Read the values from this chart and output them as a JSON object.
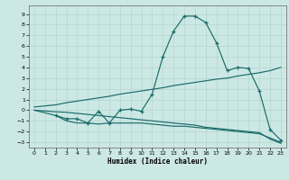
{
  "xlabel": "Humidex (Indice chaleur)",
  "bg_color": "#cce8e4",
  "grid_color": "#b8d8d4",
  "line_color": "#1a6b6b",
  "xlim": [
    -0.5,
    23.5
  ],
  "ylim": [
    -3.5,
    9.8
  ],
  "yticks": [
    -3,
    -2,
    -1,
    0,
    1,
    2,
    3,
    4,
    5,
    6,
    7,
    8,
    9
  ],
  "xticks": [
    0,
    1,
    2,
    3,
    4,
    5,
    6,
    7,
    8,
    9,
    10,
    11,
    12,
    13,
    14,
    15,
    16,
    17,
    18,
    19,
    20,
    21,
    22,
    23
  ],
  "line_bell_x": [
    2,
    3,
    4,
    5,
    6,
    7,
    8,
    9,
    10,
    11,
    12,
    13,
    14,
    15,
    16,
    17,
    18,
    19,
    20,
    21,
    22,
    23
  ],
  "line_bell_y": [
    -0.5,
    -0.8,
    -0.8,
    -1.2,
    -0.1,
    -1.2,
    0.0,
    0.1,
    -0.1,
    1.5,
    5.0,
    7.4,
    8.8,
    8.8,
    8.2,
    6.3,
    3.7,
    4.0,
    3.9,
    1.8,
    -1.8,
    -2.8
  ],
  "line_rise_x": [
    0,
    2,
    3,
    4,
    5,
    6,
    7,
    8,
    9,
    10,
    11,
    12,
    13,
    14,
    15,
    16,
    17,
    18,
    19,
    20,
    21,
    22,
    23
  ],
  "line_rise_y": [
    0.3,
    0.5,
    0.7,
    0.85,
    1.0,
    1.15,
    1.3,
    1.5,
    1.65,
    1.8,
    1.95,
    2.1,
    2.3,
    2.45,
    2.6,
    2.75,
    2.9,
    3.0,
    3.2,
    3.35,
    3.5,
    3.7,
    4.0
  ],
  "line_flat_x": [
    0,
    2,
    3,
    4,
    5,
    6,
    7,
    8,
    9,
    10,
    11,
    12,
    13,
    14,
    15,
    16,
    17,
    18,
    19,
    20,
    21,
    22,
    23
  ],
  "line_flat_y": [
    0.0,
    -0.15,
    -0.2,
    -0.3,
    -0.4,
    -0.5,
    -0.6,
    -0.7,
    -0.8,
    -0.9,
    -1.0,
    -1.1,
    -1.2,
    -1.3,
    -1.4,
    -1.6,
    -1.7,
    -1.8,
    -1.9,
    -2.0,
    -2.1,
    -2.7,
    -3.1
  ],
  "line_mid_x": [
    0,
    2,
    3,
    4,
    5,
    6,
    7,
    8,
    9,
    10,
    11,
    12,
    13,
    14,
    15,
    16,
    17,
    18,
    19,
    20,
    21,
    22,
    23
  ],
  "line_mid_y": [
    0.0,
    -0.5,
    -1.0,
    -1.2,
    -1.2,
    -1.3,
    -1.2,
    -1.2,
    -1.2,
    -1.2,
    -1.3,
    -1.4,
    -1.5,
    -1.5,
    -1.6,
    -1.7,
    -1.8,
    -1.9,
    -2.0,
    -2.1,
    -2.2,
    -2.6,
    -3.0
  ]
}
